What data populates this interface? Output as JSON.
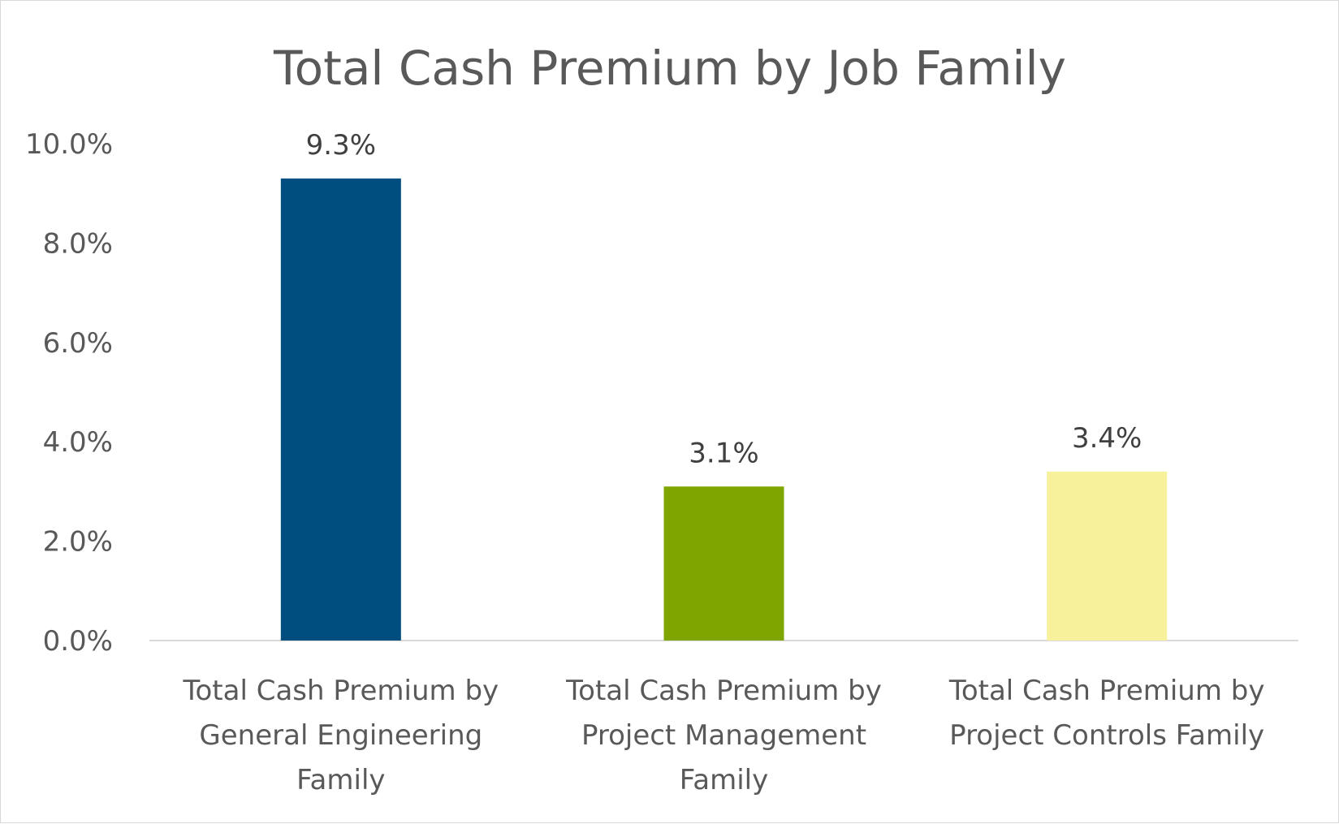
{
  "chart_data": {
    "type": "bar",
    "title": "Total Cash Premium by Job Family",
    "xlabel": "",
    "ylabel": "",
    "ylim": [
      0,
      10
    ],
    "y_ticks": [
      "0.0%",
      "2.0%",
      "4.0%",
      "6.0%",
      "8.0%",
      "10.0%"
    ],
    "categories": [
      [
        "Total Cash Premium by",
        "General Engineering",
        "Family"
      ],
      [
        "Total Cash Premium by",
        "Project Management",
        "Family"
      ],
      [
        "Total Cash Premium by",
        "Project Controls Family"
      ]
    ],
    "values": [
      9.3,
      3.1,
      3.4
    ],
    "data_labels": [
      "9.3%",
      "3.1%",
      "3.4%"
    ],
    "colors": [
      "#004e7f",
      "#7fa500",
      "#f7f19b"
    ],
    "grid": false,
    "legend": "none"
  }
}
